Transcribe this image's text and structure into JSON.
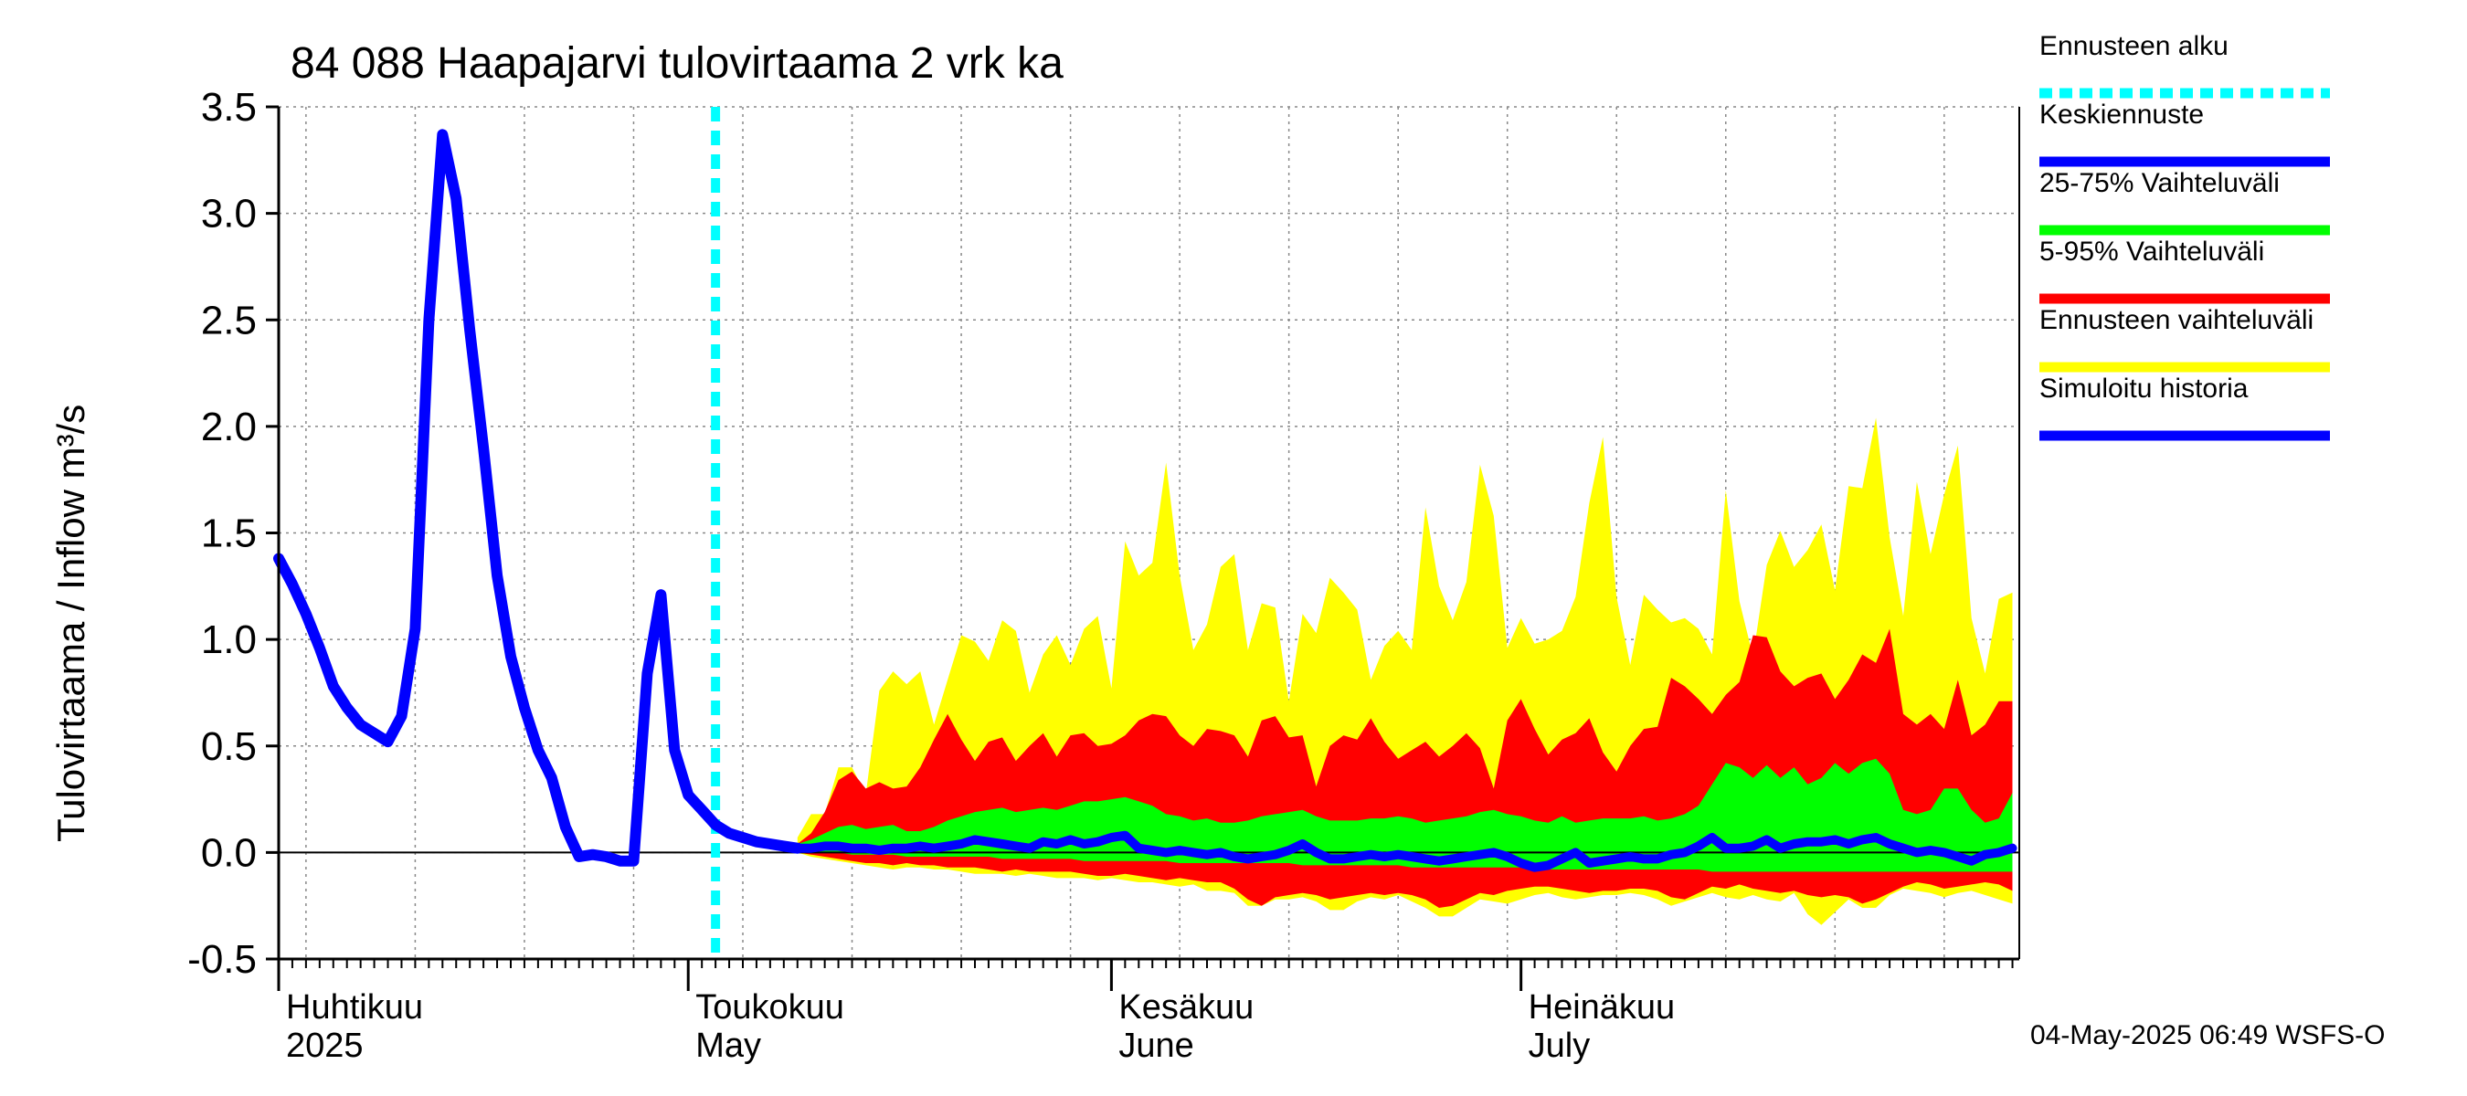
{
  "chart_data": {
    "type": "area",
    "title": "84 088 Haapajarvi tulovirtaama 2 vrk ka",
    "ylabel": "Tulovirtaama / Inflow    m³/s",
    "ylim": [
      -0.5,
      3.5
    ],
    "yticks": [
      -0.5,
      0.0,
      0.5,
      1.0,
      1.5,
      2.0,
      2.5,
      3.0,
      3.5
    ],
    "ytick_labels": [
      "-0.5",
      "0.0",
      "0.5",
      "1.0",
      "1.5",
      "2.0",
      "2.5",
      "3.0",
      "3.5"
    ],
    "x_start": "2025-03-31",
    "x_end_day": 127.5,
    "forecast_start_day": 32,
    "month_labels": [
      {
        "day": 1,
        "line1": "Huhtikuu",
        "line2": "2025"
      },
      {
        "day": 31,
        "line1": "Toukokuu",
        "line2": "May"
      },
      {
        "day": 62,
        "line1": "Kesäkuu",
        "line2": "June"
      },
      {
        "day": 92,
        "line1": "Heinäkuu",
        "line2": "July"
      }
    ],
    "history": {
      "name": "Simuloitu historia",
      "x": [
        0,
        1,
        2,
        3,
        4,
        5,
        6,
        7,
        8,
        9,
        10,
        11,
        12,
        13,
        14,
        15,
        16,
        17,
        18,
        19,
        20,
        21,
        22,
        23,
        24,
        25,
        26,
        27,
        28,
        29,
        30,
        31,
        32,
        33,
        34,
        35,
        36,
        37,
        38
      ],
      "y": [
        1.38,
        1.26,
        1.12,
        0.96,
        0.78,
        0.68,
        0.6,
        0.56,
        0.52,
        0.64,
        1.05,
        2.5,
        3.37,
        3.07,
        2.45,
        1.9,
        1.3,
        0.92,
        0.68,
        0.48,
        0.35,
        0.12,
        -0.02,
        -0.01,
        -0.02,
        -0.04,
        -0.04,
        0.84,
        1.21,
        0.48,
        0.27,
        0.2,
        0.13,
        0.09,
        0.07,
        0.05,
        0.04,
        0.03,
        0.02
      ]
    },
    "median": {
      "name": "Keskiennuste",
      "x": [
        38,
        39,
        40,
        41,
        42,
        43,
        44,
        45,
        46,
        47,
        48,
        49,
        50,
        51,
        52,
        53,
        54,
        55,
        56,
        57,
        58,
        59,
        60,
        61,
        62,
        63,
        64,
        65,
        66,
        67,
        68,
        69,
        70,
        71,
        72,
        73,
        74,
        75,
        76,
        77,
        78,
        79,
        80,
        81,
        82,
        83,
        84,
        85,
        86,
        87,
        88,
        89,
        90,
        91,
        92,
        93,
        94,
        95,
        96,
        97,
        98,
        99,
        100,
        101,
        102,
        103,
        104,
        105,
        106,
        107,
        108,
        109,
        110,
        111,
        112,
        113,
        114,
        115,
        116,
        117,
        118,
        119,
        120,
        121,
        122,
        123,
        124,
        125,
        126,
        127
      ],
      "y": [
        0.02,
        0.02,
        0.03,
        0.03,
        0.02,
        0.02,
        0.01,
        0.02,
        0.02,
        0.03,
        0.02,
        0.03,
        0.04,
        0.06,
        0.05,
        0.04,
        0.03,
        0.02,
        0.05,
        0.04,
        0.06,
        0.04,
        0.05,
        0.07,
        0.08,
        0.02,
        0.01,
        0.0,
        0.01,
        0.0,
        -0.01,
        0.0,
        -0.02,
        -0.03,
        -0.02,
        -0.01,
        0.01,
        0.04,
        0.0,
        -0.03,
        -0.03,
        -0.02,
        -0.01,
        -0.02,
        -0.01,
        -0.02,
        -0.03,
        -0.04,
        -0.03,
        -0.02,
        -0.01,
        0.0,
        -0.02,
        -0.05,
        -0.07,
        -0.06,
        -0.03,
        0.0,
        -0.05,
        -0.04,
        -0.03,
        -0.02,
        -0.03,
        -0.03,
        -0.01,
        0.0,
        0.03,
        0.07,
        0.02,
        0.02,
        0.03,
        0.06,
        0.02,
        0.04,
        0.05,
        0.05,
        0.06,
        0.04,
        0.06,
        0.07,
        0.04,
        0.02,
        0.0,
        0.01,
        0.0,
        -0.02,
        -0.04,
        -0.01,
        0.0,
        0.02
      ]
    },
    "band_25_75": {
      "name": "25-75% Vaihteluväli",
      "lower": [
        0.0,
        0.0,
        0.0,
        0.0,
        -0.01,
        -0.01,
        -0.01,
        -0.01,
        -0.02,
        -0.02,
        -0.02,
        -0.02,
        -0.02,
        -0.02,
        -0.02,
        -0.03,
        -0.03,
        -0.03,
        -0.03,
        -0.03,
        -0.03,
        -0.04,
        -0.04,
        -0.04,
        -0.04,
        -0.04,
        -0.04,
        -0.04,
        -0.05,
        -0.05,
        -0.05,
        -0.05,
        -0.05,
        -0.05,
        -0.05,
        -0.05,
        -0.05,
        -0.06,
        -0.06,
        -0.06,
        -0.06,
        -0.06,
        -0.06,
        -0.06,
        -0.06,
        -0.07,
        -0.07,
        -0.07,
        -0.07,
        -0.07,
        -0.07,
        -0.07,
        -0.07,
        -0.07,
        -0.07,
        -0.08,
        -0.08,
        -0.08,
        -0.08,
        -0.08,
        -0.08,
        -0.08,
        -0.08,
        -0.08,
        -0.08,
        -0.08,
        -0.08,
        -0.09,
        -0.09,
        -0.09,
        -0.09,
        -0.09,
        -0.09,
        -0.09,
        -0.09,
        -0.09,
        -0.09,
        -0.09,
        -0.09,
        -0.09,
        -0.09,
        -0.09,
        -0.09,
        -0.09,
        -0.09,
        -0.09,
        -0.09,
        -0.09,
        -0.09,
        -0.09
      ],
      "upper": [
        0.04,
        0.06,
        0.09,
        0.12,
        0.13,
        0.11,
        0.12,
        0.13,
        0.1,
        0.1,
        0.12,
        0.15,
        0.17,
        0.19,
        0.2,
        0.21,
        0.19,
        0.2,
        0.21,
        0.2,
        0.22,
        0.24,
        0.24,
        0.25,
        0.26,
        0.24,
        0.22,
        0.18,
        0.17,
        0.15,
        0.16,
        0.14,
        0.14,
        0.15,
        0.17,
        0.18,
        0.19,
        0.2,
        0.17,
        0.15,
        0.15,
        0.15,
        0.16,
        0.16,
        0.17,
        0.16,
        0.14,
        0.15,
        0.16,
        0.17,
        0.19,
        0.2,
        0.18,
        0.17,
        0.15,
        0.14,
        0.17,
        0.14,
        0.15,
        0.16,
        0.16,
        0.16,
        0.17,
        0.15,
        0.16,
        0.18,
        0.22,
        0.32,
        0.42,
        0.4,
        0.35,
        0.41,
        0.35,
        0.4,
        0.32,
        0.35,
        0.42,
        0.37,
        0.42,
        0.44,
        0.37,
        0.2,
        0.18,
        0.2,
        0.3,
        0.3,
        0.2,
        0.14,
        0.16,
        0.28
      ]
    },
    "band_5_95": {
      "name": "5-95% Vaihteluväli",
      "lower": [
        0.0,
        -0.01,
        -0.02,
        -0.03,
        -0.04,
        -0.05,
        -0.05,
        -0.06,
        -0.05,
        -0.06,
        -0.06,
        -0.07,
        -0.07,
        -0.07,
        -0.08,
        -0.09,
        -0.08,
        -0.09,
        -0.09,
        -0.09,
        -0.09,
        -0.1,
        -0.11,
        -0.11,
        -0.1,
        -0.11,
        -0.12,
        -0.13,
        -0.12,
        -0.13,
        -0.14,
        -0.14,
        -0.17,
        -0.22,
        -0.25,
        -0.21,
        -0.2,
        -0.19,
        -0.2,
        -0.22,
        -0.21,
        -0.2,
        -0.19,
        -0.2,
        -0.19,
        -0.2,
        -0.22,
        -0.26,
        -0.25,
        -0.22,
        -0.19,
        -0.2,
        -0.18,
        -0.17,
        -0.16,
        -0.16,
        -0.17,
        -0.18,
        -0.19,
        -0.18,
        -0.18,
        -0.17,
        -0.17,
        -0.18,
        -0.21,
        -0.22,
        -0.19,
        -0.16,
        -0.17,
        -0.15,
        -0.17,
        -0.18,
        -0.19,
        -0.18,
        -0.2,
        -0.21,
        -0.2,
        -0.21,
        -0.24,
        -0.22,
        -0.19,
        -0.16,
        -0.14,
        -0.15,
        -0.17,
        -0.16,
        -0.15,
        -0.14,
        -0.15,
        -0.18
      ],
      "upper": [
        0.04,
        0.09,
        0.19,
        0.34,
        0.38,
        0.3,
        0.33,
        0.3,
        0.31,
        0.4,
        0.53,
        0.65,
        0.53,
        0.43,
        0.52,
        0.54,
        0.43,
        0.5,
        0.56,
        0.45,
        0.55,
        0.56,
        0.5,
        0.51,
        0.55,
        0.62,
        0.65,
        0.64,
        0.55,
        0.5,
        0.58,
        0.57,
        0.55,
        0.45,
        0.62,
        0.64,
        0.54,
        0.55,
        0.31,
        0.5,
        0.55,
        0.53,
        0.63,
        0.52,
        0.44,
        0.48,
        0.52,
        0.45,
        0.5,
        0.56,
        0.49,
        0.3,
        0.62,
        0.72,
        0.58,
        0.46,
        0.53,
        0.56,
        0.63,
        0.47,
        0.38,
        0.5,
        0.58,
        0.59,
        0.82,
        0.78,
        0.72,
        0.65,
        0.74,
        0.8,
        1.02,
        1.01,
        0.85,
        0.78,
        0.82,
        0.84,
        0.72,
        0.81,
        0.93,
        0.89,
        1.05,
        0.65,
        0.6,
        0.65,
        0.58,
        0.81,
        0.55,
        0.6,
        0.71,
        0.71
      ]
    },
    "band_full": {
      "name": "Ennusteen vaihteluväli",
      "lower": [
        0.0,
        -0.02,
        -0.03,
        -0.04,
        -0.05,
        -0.06,
        -0.07,
        -0.08,
        -0.07,
        -0.07,
        -0.08,
        -0.08,
        -0.09,
        -0.1,
        -0.1,
        -0.1,
        -0.11,
        -0.1,
        -0.11,
        -0.12,
        -0.12,
        -0.12,
        -0.13,
        -0.12,
        -0.13,
        -0.14,
        -0.14,
        -0.15,
        -0.16,
        -0.15,
        -0.18,
        -0.18,
        -0.19,
        -0.25,
        -0.25,
        -0.22,
        -0.22,
        -0.21,
        -0.23,
        -0.27,
        -0.27,
        -0.23,
        -0.21,
        -0.22,
        -0.2,
        -0.23,
        -0.26,
        -0.3,
        -0.3,
        -0.26,
        -0.22,
        -0.23,
        -0.24,
        -0.22,
        -0.2,
        -0.19,
        -0.21,
        -0.22,
        -0.21,
        -0.2,
        -0.2,
        -0.19,
        -0.2,
        -0.22,
        -0.25,
        -0.23,
        -0.21,
        -0.19,
        -0.21,
        -0.22,
        -0.2,
        -0.22,
        -0.23,
        -0.19,
        -0.29,
        -0.34,
        -0.28,
        -0.22,
        -0.26,
        -0.26,
        -0.2,
        -0.17,
        -0.18,
        -0.19,
        -0.21,
        -0.19,
        -0.18,
        -0.2,
        -0.22,
        -0.24
      ],
      "upper": [
        0.07,
        0.18,
        0.18,
        0.4,
        0.4,
        0.27,
        0.76,
        0.85,
        0.79,
        0.85,
        0.6,
        0.81,
        1.02,
        0.99,
        0.9,
        1.09,
        1.04,
        0.75,
        0.93,
        1.02,
        0.88,
        1.05,
        1.11,
        0.77,
        1.46,
        1.3,
        1.36,
        1.83,
        1.3,
        0.95,
        1.07,
        1.34,
        1.4,
        0.95,
        1.17,
        1.15,
        0.71,
        1.12,
        1.03,
        1.29,
        1.22,
        1.14,
        0.81,
        0.97,
        1.04,
        0.95,
        1.62,
        1.25,
        1.09,
        1.27,
        1.82,
        1.58,
        0.96,
        1.1,
        0.98,
        1.0,
        1.04,
        1.2,
        1.64,
        1.95,
        1.2,
        0.88,
        1.21,
        1.14,
        1.08,
        1.1,
        1.05,
        0.93,
        1.7,
        1.18,
        0.92,
        1.35,
        1.51,
        1.34,
        1.42,
        1.54,
        1.23,
        1.72,
        1.71,
        2.04,
        1.48,
        1.11,
        1.74,
        1.4,
        1.68,
        1.91,
        1.1,
        0.84,
        1.19,
        1.22
      ]
    },
    "legend": [
      {
        "label": "Ennusteen alku",
        "color": "#00ffff",
        "style": "dotted"
      },
      {
        "label": "Keskiennuste",
        "color": "#0000ff",
        "style": "solid"
      },
      {
        "label": "25-75% Vaihteluväli",
        "color": "#00ff00",
        "style": "solid"
      },
      {
        "label": "5-95% Vaihteluväli",
        "color": "#ff0000",
        "style": "solid"
      },
      {
        "label": "Ennusteen vaihteluväli",
        "color": "#ffff00",
        "style": "solid"
      },
      {
        "label": "Simuloitu historia",
        "color": "#0000ff",
        "style": "solid"
      }
    ],
    "footer": "04-May-2025 06:49 WSFS-O",
    "colors": {
      "history": "#0000ff",
      "median": "#0000ff",
      "band_25_75": "#00ff00",
      "band_5_95": "#ff0000",
      "band_full": "#ffff00",
      "forecast_start": "#00ffff",
      "grid": "#888888"
    }
  }
}
